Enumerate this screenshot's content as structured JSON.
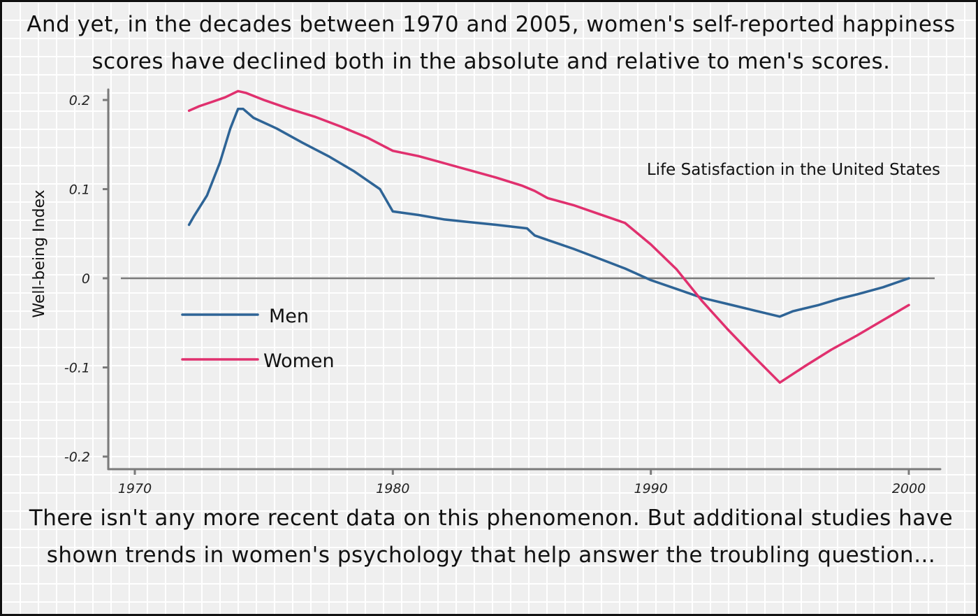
{
  "captions": {
    "top": "And yet, in the decades between 1970 and 2005, women's self-reported happiness scores have declined both in the absolute and relative to men's scores.",
    "bottom": "There isn't any more recent data on this phenomenon. But additional studies have shown trends in women's psychology that help answer the troubling question..."
  },
  "chart_data": {
    "type": "line",
    "title": "Life Satisfaction in the United States",
    "xlabel": "",
    "ylabel": "Well-being Index",
    "xlim": [
      1969,
      2001.2
    ],
    "ylim": [
      -0.215,
      0.21
    ],
    "x_ticks": [
      {
        "value": 1970,
        "label": "1970"
      },
      {
        "value": 1980,
        "label": "1980"
      },
      {
        "value": 1990,
        "label": "1990"
      },
      {
        "value": 2000,
        "label": "2000"
      }
    ],
    "y_ticks": [
      {
        "value": 0.2,
        "label": "0.2"
      },
      {
        "value": 0.1,
        "label": "0.1"
      },
      {
        "value": 0,
        "label": "0"
      },
      {
        "value": -0.1,
        "label": "-0.1"
      },
      {
        "value": -0.2,
        "label": "-0.2"
      }
    ],
    "reference_line_y": 0,
    "grid": true,
    "legend_position": "lower-left inside",
    "series": [
      {
        "name": "Men",
        "color": "#2e6496",
        "points": [
          [
            1972.1,
            0.06
          ],
          [
            1972.3,
            0.07
          ],
          [
            1972.8,
            0.093
          ],
          [
            1973.3,
            0.13
          ],
          [
            1973.7,
            0.168
          ],
          [
            1974,
            0.19
          ],
          [
            1974.2,
            0.19
          ],
          [
            1974.6,
            0.18
          ],
          [
            1975.5,
            0.168
          ],
          [
            1976.5,
            0.152
          ],
          [
            1977.5,
            0.137
          ],
          [
            1978.5,
            0.12
          ],
          [
            1979.5,
            0.1
          ],
          [
            1980,
            0.075
          ],
          [
            1981,
            0.071
          ],
          [
            1982,
            0.066
          ],
          [
            1983,
            0.063
          ],
          [
            1984,
            0.06
          ],
          [
            1985.2,
            0.056
          ],
          [
            1985.5,
            0.048
          ],
          [
            1986,
            0.043
          ],
          [
            1987,
            0.033
          ],
          [
            1988,
            0.022
          ],
          [
            1989,
            0.011
          ],
          [
            1990,
            -0.002
          ],
          [
            1991,
            -0.012
          ],
          [
            1992,
            -0.022
          ],
          [
            1993,
            -0.029
          ],
          [
            1994,
            -0.036
          ],
          [
            1995,
            -0.043
          ],
          [
            1995.5,
            -0.037
          ],
          [
            1996.5,
            -0.03
          ],
          [
            1997.3,
            -0.023
          ],
          [
            1998,
            -0.018
          ],
          [
            1999,
            -0.01
          ],
          [
            2000,
            0
          ]
        ]
      },
      {
        "name": "Women",
        "color": "#e0306e",
        "points": [
          [
            1972.1,
            0.188
          ],
          [
            1972.5,
            0.193
          ],
          [
            1973,
            0.198
          ],
          [
            1973.5,
            0.203
          ],
          [
            1974,
            0.21
          ],
          [
            1974.3,
            0.208
          ],
          [
            1975,
            0.2
          ],
          [
            1976,
            0.19
          ],
          [
            1977,
            0.181
          ],
          [
            1978,
            0.17
          ],
          [
            1979,
            0.158
          ],
          [
            1980,
            0.143
          ],
          [
            1981,
            0.137
          ],
          [
            1982,
            0.129
          ],
          [
            1983,
            0.121
          ],
          [
            1984,
            0.113
          ],
          [
            1985,
            0.104
          ],
          [
            1985.5,
            0.098
          ],
          [
            1986,
            0.09
          ],
          [
            1987,
            0.082
          ],
          [
            1988,
            0.072
          ],
          [
            1989,
            0.062
          ],
          [
            1990,
            0.038
          ],
          [
            1991,
            0.01
          ],
          [
            1992,
            -0.026
          ],
          [
            1993,
            -0.058
          ],
          [
            1994,
            -0.088
          ],
          [
            1995,
            -0.117
          ],
          [
            1996,
            -0.098
          ],
          [
            1997,
            -0.08
          ],
          [
            1998,
            -0.064
          ],
          [
            1999,
            -0.047
          ],
          [
            2000,
            -0.03
          ]
        ]
      }
    ]
  }
}
